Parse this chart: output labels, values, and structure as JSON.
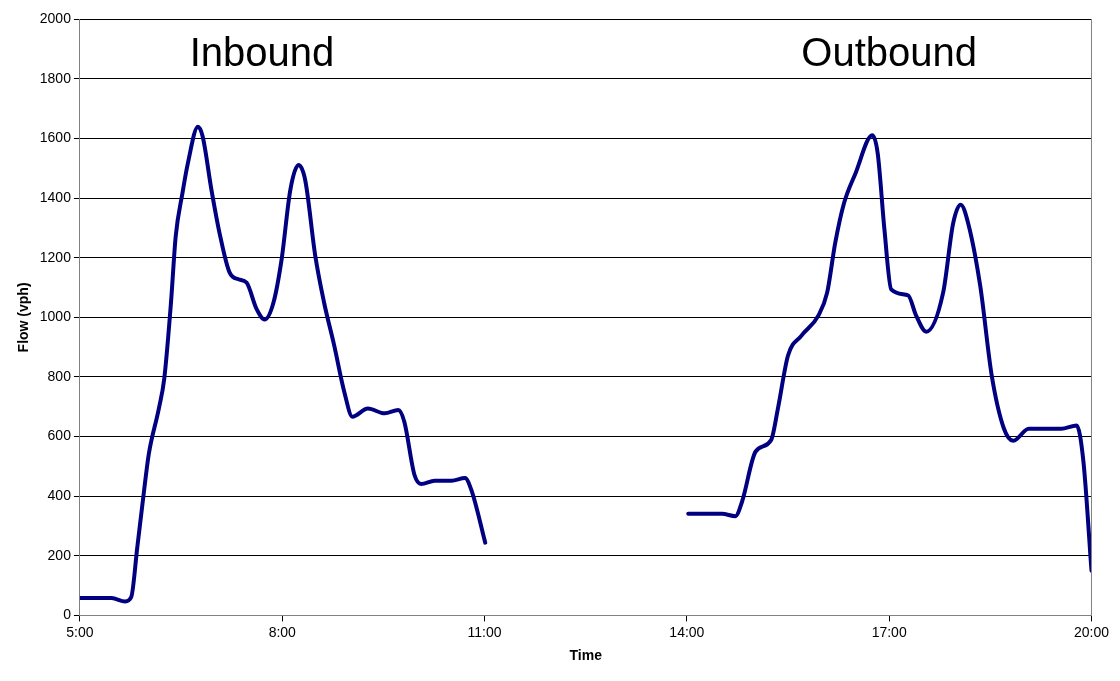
{
  "chart_data": {
    "type": "line",
    "xlabel": "Time",
    "ylabel": "Flow (vph)",
    "annotations": [
      "Inbound",
      "Outbound"
    ],
    "xlim": [
      5,
      20
    ],
    "xticks": [
      {
        "value": 5,
        "label": "5:00"
      },
      {
        "value": 8,
        "label": "8:00"
      },
      {
        "value": 11,
        "label": "11:00"
      },
      {
        "value": 14,
        "label": "14:00"
      },
      {
        "value": 17,
        "label": "17:00"
      },
      {
        "value": 20,
        "label": "20:00"
      }
    ],
    "ylim": [
      0,
      2000
    ],
    "yticks": [
      0,
      200,
      400,
      600,
      800,
      1000,
      1200,
      1400,
      1600,
      1800,
      2000
    ],
    "grid": "y",
    "legend": false,
    "marker": "none",
    "line_style": "solid",
    "series": [
      {
        "color": "#000080",
        "x": [
          5.0,
          5.47,
          5.67,
          5.76,
          5.85,
          5.95,
          6.02,
          6.17,
          6.25,
          6.35,
          6.42,
          6.52,
          6.6,
          6.75,
          6.82,
          6.95,
          7.07,
          7.22,
          7.35,
          7.47,
          7.62,
          7.74,
          7.87,
          7.99,
          8.12,
          8.24,
          8.34,
          8.49,
          8.62,
          8.77,
          8.92,
          9.04,
          9.27,
          9.52,
          9.72,
          9.81,
          9.96,
          10.06,
          10.26,
          10.51,
          10.71,
          10.81,
          11.01,
          12.5,
          14.02,
          14.52,
          14.72,
          14.82,
          15.02,
          15.25,
          15.35,
          15.5,
          15.7,
          15.95,
          16.08,
          16.2,
          16.33,
          16.5,
          16.75,
          16.83,
          16.93,
          17.03,
          17.28,
          17.4,
          17.55,
          17.8,
          17.95,
          18.06,
          18.17,
          18.35,
          18.52,
          18.7,
          18.84,
          19.07,
          19.55,
          19.78,
          19.88,
          20.0
        ],
        "values": [
          58,
          58,
          47,
          61,
          228,
          417,
          540,
          694,
          794,
          1050,
          1272,
          1417,
          1517,
          1640,
          1607,
          1428,
          1283,
          1150,
          1128,
          1117,
          1028,
          993,
          1050,
          1194,
          1428,
          1511,
          1461,
          1206,
          1050,
          906,
          750,
          667,
          694,
          678,
          689,
          650,
          472,
          441,
          452,
          452,
          461,
          417,
          244,
          null,
          341,
          341,
          333,
          383,
          550,
          589,
          694,
          872,
          939,
          1006,
          1083,
          1250,
          1383,
          1483,
          1611,
          1550,
          1294,
          1094,
          1074,
          1006,
          952,
          1083,
          1317,
          1378,
          1317,
          1106,
          806,
          628,
          586,
          626,
          626,
          637,
          517,
          150
        ]
      }
    ]
  }
}
